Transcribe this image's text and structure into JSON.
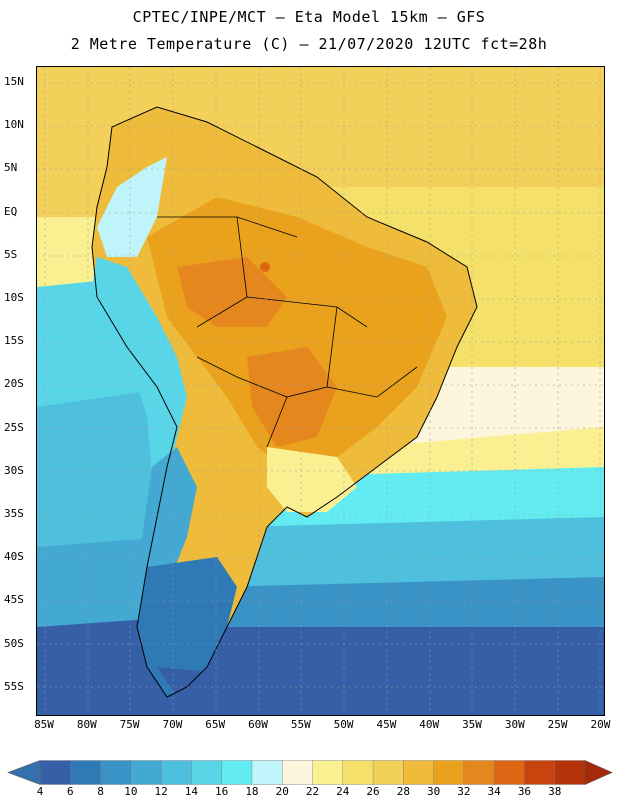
{
  "title": {
    "line1": "CPTEC/INPE/MCT –  Eta Model 15km – GFS",
    "line2": "2 Metre Temperature (C) – 21/07/2020 12UTC fct=28h"
  },
  "axes": {
    "lat_labels": [
      "15N",
      "10N",
      "5N",
      "EQ",
      "5S",
      "10S",
      "15S",
      "20S",
      "25S",
      "30S",
      "35S",
      "40S",
      "45S",
      "50S",
      "55S"
    ],
    "lon_labels": [
      "85W",
      "80W",
      "75W",
      "70W",
      "65W",
      "60W",
      "55W",
      "50W",
      "45W",
      "40W",
      "35W",
      "30W",
      "25W",
      "20W"
    ]
  },
  "colorbar": {
    "labels": [
      "4",
      "6",
      "8",
      "10",
      "12",
      "14",
      "16",
      "18",
      "20",
      "22",
      "24",
      "26",
      "28",
      "30",
      "32",
      "34",
      "36",
      "38"
    ],
    "colors": [
      "#3560a8",
      "#2f7ab6",
      "#3a93c6",
      "#44a9d2",
      "#4ebfdc",
      "#58d6e8",
      "#62ecf2",
      "#bff4fa",
      "#fdf6dc",
      "#fbf091",
      "#f5e16a",
      "#f3d05a",
      "#eebc3a",
      "#eaa21c",
      "#e6871e",
      "#dd6714",
      "#c8440e",
      "#b5320a"
    ],
    "under_color": "#3470ae",
    "over_color": "#a52a0a"
  },
  "map": {
    "ocean_bands": [
      {
        "zone": "north",
        "temp_range": "26-28",
        "color": "#f3d05a"
      },
      {
        "zone": "tropical-south-atlantic",
        "temp_range": "24-26",
        "color": "#f5e16a"
      },
      {
        "zone": "subtropical",
        "temp_range": "20-22",
        "color": "#fdf6dc"
      },
      {
        "zone": "mid-latitude",
        "temp_range": "16-18",
        "color": "#62ecf2"
      },
      {
        "zone": "southern",
        "temp_range": "8-10",
        "color": "#3a93c6"
      },
      {
        "zone": "far-south",
        "temp_range": "4-6",
        "color": "#3560a8"
      }
    ],
    "land_colors": {
      "amazon": "#eaa21c",
      "hot-core": "#dd6714",
      "andes": "#62ecf2",
      "patagonia": "#2f7ab6"
    }
  }
}
